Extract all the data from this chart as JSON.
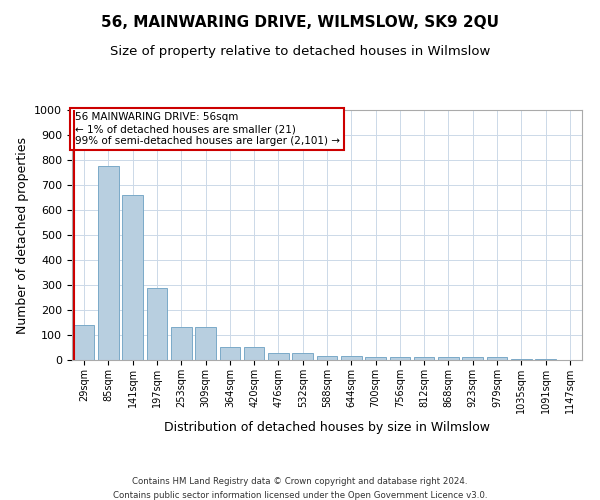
{
  "title": "56, MAINWARING DRIVE, WILMSLOW, SK9 2QU",
  "subtitle": "Size of property relative to detached houses in Wilmslow",
  "xlabel": "Distribution of detached houses by size in Wilmslow",
  "ylabel": "Number of detached properties",
  "categories": [
    "29sqm",
    "85sqm",
    "141sqm",
    "197sqm",
    "253sqm",
    "309sqm",
    "364sqm",
    "420sqm",
    "476sqm",
    "532sqm",
    "588sqm",
    "644sqm",
    "700sqm",
    "756sqm",
    "812sqm",
    "868sqm",
    "923sqm",
    "979sqm",
    "1035sqm",
    "1091sqm",
    "1147sqm"
  ],
  "values": [
    140,
    775,
    660,
    290,
    133,
    133,
    53,
    53,
    28,
    28,
    18,
    18,
    11,
    11,
    11,
    11,
    11,
    11,
    6,
    6,
    0
  ],
  "bar_color": "#b8cfe0",
  "bar_edge_color": "#7aaac8",
  "highlight_color": "#cc0000",
  "ylim": [
    0,
    1000
  ],
  "yticks": [
    0,
    100,
    200,
    300,
    400,
    500,
    600,
    700,
    800,
    900,
    1000
  ],
  "annotation_text": "56 MAINWARING DRIVE: 56sqm\n← 1% of detached houses are smaller (21)\n99% of semi-detached houses are larger (2,101) →",
  "annotation_box_color": "#ffffff",
  "annotation_border_color": "#cc0000",
  "footer_line1": "Contains HM Land Registry data © Crown copyright and database right 2024.",
  "footer_line2": "Contains public sector information licensed under the Open Government Licence v3.0.",
  "bg_color": "#ffffff",
  "grid_color": "#ccd9e8",
  "title_fontsize": 11,
  "subtitle_fontsize": 9.5,
  "axis_label_fontsize": 9,
  "tick_fontsize": 8,
  "xtick_fontsize": 7
}
